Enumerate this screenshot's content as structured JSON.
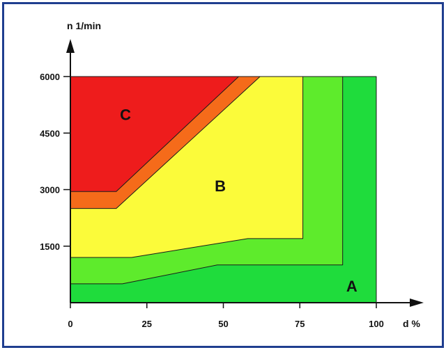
{
  "chart_data": {
    "type": "area",
    "title": "",
    "xlabel": "d %",
    "ylabel": "n 1/min",
    "xlim": [
      0,
      100
    ],
    "ylim": [
      0,
      6000
    ],
    "x_ticks": [
      {
        "value": 0,
        "label": "0"
      },
      {
        "value": 25,
        "label": "25"
      },
      {
        "value": 50,
        "label": "50"
      },
      {
        "value": 75,
        "label": "75"
      },
      {
        "value": 100,
        "label": "100"
      }
    ],
    "y_ticks": [
      {
        "value": 1500,
        "label": "1500"
      },
      {
        "value": 3000,
        "label": "3000"
      },
      {
        "value": 4500,
        "label": "4500"
      },
      {
        "value": 6000,
        "label": "6000"
      }
    ],
    "regions": [
      {
        "name": "region-a-outer",
        "color": "#1fdc3c",
        "points": [
          [
            0,
            0
          ],
          [
            100,
            0
          ],
          [
            100,
            6000
          ],
          [
            0,
            6000
          ]
        ]
      },
      {
        "name": "region-a-inner",
        "color": "#5eeb2c",
        "points": [
          [
            0,
            500
          ],
          [
            17,
            500
          ],
          [
            48,
            1000
          ],
          [
            89,
            1000
          ],
          [
            89,
            6000
          ],
          [
            0,
            6000
          ]
        ]
      },
      {
        "name": "region-b",
        "color": "#fbfb3a",
        "points": [
          [
            0,
            1200
          ],
          [
            20,
            1200
          ],
          [
            58,
            1700
          ],
          [
            76,
            1700
          ],
          [
            76,
            6000
          ],
          [
            0,
            6000
          ]
        ]
      },
      {
        "name": "region-c-border",
        "color": "#f56b1a",
        "points": [
          [
            0,
            2500
          ],
          [
            15,
            2500
          ],
          [
            62,
            6000
          ],
          [
            0,
            6000
          ]
        ]
      },
      {
        "name": "region-c",
        "color": "#ee1c1c",
        "points": [
          [
            0,
            2950
          ],
          [
            15,
            2950
          ],
          [
            55,
            6000
          ],
          [
            0,
            6000
          ]
        ]
      }
    ],
    "zone_labels": [
      {
        "text": "A",
        "x": 92,
        "y": 300
      },
      {
        "text": "B",
        "x": 49,
        "y": 2950
      },
      {
        "text": "C",
        "x": 18,
        "y": 4850
      }
    ],
    "grid": false,
    "legend": "none"
  }
}
